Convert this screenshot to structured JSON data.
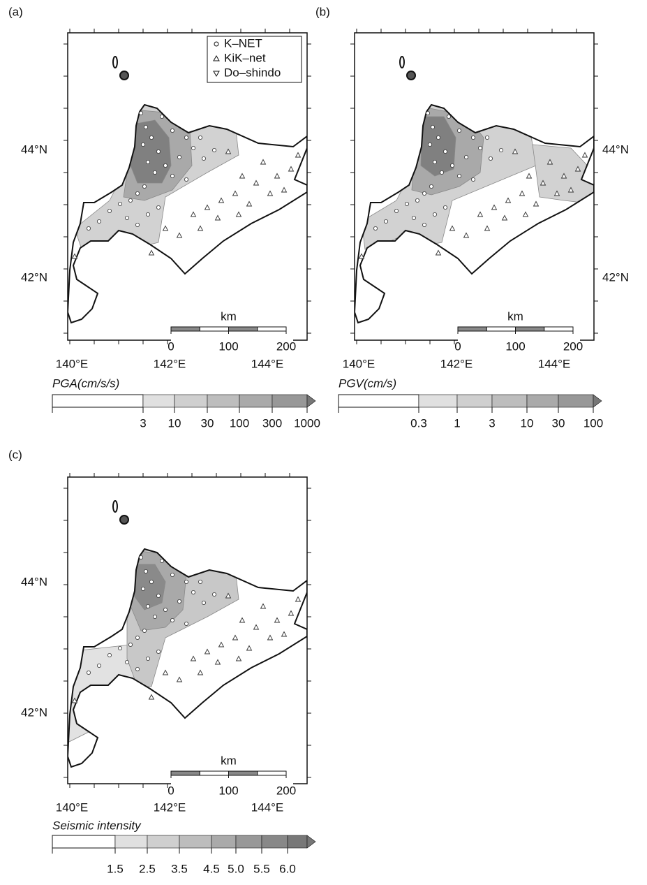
{
  "panels": [
    {
      "label": "(a)",
      "lat_labels": [
        "44°N",
        "42°N"
      ],
      "lon_labels": [
        "140°E",
        "142°E",
        "144°E"
      ],
      "legend": [
        "K–NET",
        "KiK–net",
        "Do–shindo"
      ],
      "scale": {
        "unit": "km",
        "ticks": [
          0,
          100,
          200
        ]
      },
      "colorbar": {
        "title": "PGA(cm/s/s)",
        "ticks": [
          3,
          10,
          30,
          100,
          300,
          1000
        ]
      }
    },
    {
      "label": "(b)",
      "lat_labels": [
        "44°N",
        "42°N"
      ],
      "lon_labels": [
        "140°E",
        "142°E",
        "144°E"
      ],
      "scale": {
        "unit": "km",
        "ticks": [
          0,
          100,
          200
        ]
      },
      "colorbar": {
        "title": "PGV(cm/s)",
        "ticks": [
          0.3,
          1,
          3,
          10,
          30,
          100
        ]
      }
    },
    {
      "label": "(c)",
      "lat_labels": [
        "44°N",
        "42°N"
      ],
      "lon_labels": [
        "140°E",
        "142°E",
        "144°E"
      ],
      "scale": {
        "unit": "km",
        "ticks": [
          0,
          100,
          200
        ]
      },
      "colorbar": {
        "title": "Seismic intensity",
        "ticks": [
          1.5,
          2.5,
          3.5,
          4.5,
          {
            "value": 5,
            "label": "5.0"
          },
          5.5,
          {
            "value": 6,
            "label": "6.0"
          }
        ]
      }
    }
  ]
}
